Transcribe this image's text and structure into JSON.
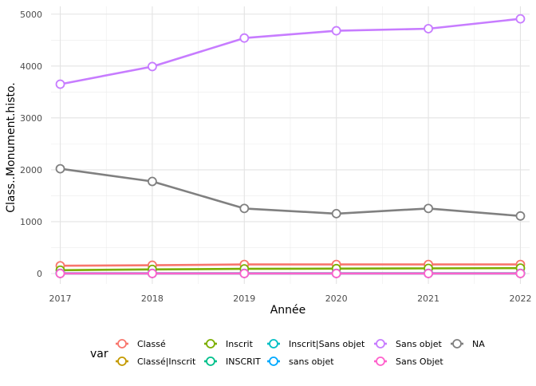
{
  "chart_data": {
    "type": "line",
    "x": [
      2017,
      2018,
      2019,
      2020,
      2021,
      2022
    ],
    "xlabel": "Année",
    "ylabel": "Class..Monument.histo.",
    "xlim": [
      2016.9,
      2022.1
    ],
    "ylim": [
      -200,
      5150
    ],
    "yticks": [
      0,
      1000,
      2000,
      3000,
      4000,
      5000
    ],
    "y_tick_labels": [
      "0",
      "1000",
      "2000",
      "3000",
      "4000",
      "5000"
    ],
    "x_tick_labels": [
      "2017",
      "2018",
      "2019",
      "2020",
      "2021",
      "2022"
    ],
    "grid": true,
    "legend": {
      "title": "var",
      "position": "bottom"
    },
    "series": [
      {
        "name": "Classé",
        "color": "#F8766D",
        "values": [
          150,
          160,
          175,
          175,
          175,
          175
        ]
      },
      {
        "name": "Classé|Inscrit",
        "color": "#C49A00",
        "values": [
          5,
          5,
          5,
          5,
          5,
          5
        ]
      },
      {
        "name": "Inscrit",
        "color": "#7CAE00",
        "values": [
          65,
          80,
          90,
          95,
          100,
          105
        ]
      },
      {
        "name": "INSCRIT",
        "color": "#00C08B",
        "values": [
          3,
          3,
          3,
          3,
          3,
          3
        ]
      },
      {
        "name": "Inscrit|Sans objet",
        "color": "#00BFC4",
        "values": [
          2,
          2,
          2,
          2,
          2,
          2
        ]
      },
      {
        "name": "sans objet",
        "color": "#00A9FF",
        "values": [
          4,
          4,
          4,
          4,
          4,
          4
        ]
      },
      {
        "name": "Sans objet",
        "color": "#C77CFF",
        "values": [
          3650,
          3990,
          4540,
          4680,
          4720,
          4910
        ]
      },
      {
        "name": "Sans Objet",
        "color": "#FF61CC",
        "values": [
          1,
          1,
          1,
          1,
          1,
          1
        ]
      },
      {
        "name": "NA",
        "color": "#808080",
        "values": [
          2020,
          1775,
          1255,
          1155,
          1255,
          1110
        ]
      }
    ]
  }
}
